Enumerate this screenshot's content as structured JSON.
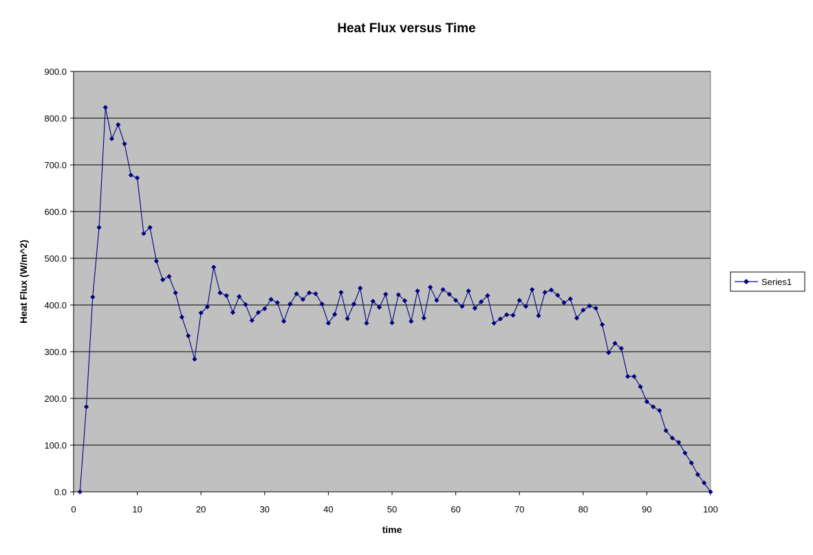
{
  "colors": {
    "plot_background": "#c0c0c0",
    "gridline": "#000000",
    "series": "#000080",
    "page_background": "#ffffff"
  },
  "chart_data": {
    "type": "line",
    "title": "Heat Flux versus Time",
    "xlabel": "time",
    "ylabel": "Heat Flux (W/m^2)",
    "xlim": [
      0,
      100
    ],
    "ylim": [
      0,
      900
    ],
    "x_ticks": [
      "0",
      "10",
      "20",
      "30",
      "40",
      "50",
      "60",
      "70",
      "80",
      "90",
      "100"
    ],
    "y_ticks": [
      "0.0",
      "100.0",
      "200.0",
      "300.0",
      "400.0",
      "500.0",
      "600.0",
      "700.0",
      "800.0",
      "900.0"
    ],
    "grid": "horizontal",
    "legend": "right",
    "marker": "diamond",
    "series": [
      {
        "name": "Series1",
        "x": [
          1,
          2,
          3,
          4,
          5,
          6,
          7,
          8,
          9,
          10,
          11,
          12,
          13,
          14,
          15,
          16,
          17,
          18,
          19,
          20,
          21,
          22,
          23,
          24,
          25,
          26,
          27,
          28,
          29,
          30,
          31,
          32,
          33,
          34,
          35,
          36,
          37,
          38,
          39,
          40,
          41,
          42,
          43,
          44,
          45,
          46,
          47,
          48,
          49,
          50,
          51,
          52,
          53,
          54,
          55,
          56,
          57,
          58,
          59,
          60,
          61,
          62,
          63,
          64,
          65,
          66,
          67,
          68,
          69,
          70,
          71,
          72,
          73,
          74,
          75,
          76,
          77,
          78,
          79,
          80,
          81,
          82,
          83,
          84,
          85,
          86,
          87,
          88,
          89,
          90,
          91,
          92,
          93,
          94,
          95,
          96,
          97,
          98,
          99,
          100
        ],
        "values": [
          0,
          182,
          417,
          566,
          823,
          756,
          786,
          745,
          678,
          672,
          553,
          566,
          494,
          454,
          461,
          426,
          374,
          334,
          284,
          383,
          396,
          481,
          426,
          420,
          384,
          418,
          401,
          367,
          384,
          392,
          412,
          405,
          365,
          402,
          424,
          412,
          426,
          424,
          402,
          361,
          380,
          427,
          371,
          402,
          436,
          361,
          408,
          395,
          423,
          362,
          422,
          409,
          365,
          430,
          372,
          438,
          410,
          433,
          423,
          410,
          397,
          430,
          393,
          407,
          420,
          361,
          370,
          379,
          378,
          410,
          397,
          433,
          377,
          427,
          432,
          421,
          405,
          413,
          372,
          389,
          398,
          393,
          358,
          298,
          318,
          307,
          247,
          247,
          225,
          193,
          182,
          174,
          131,
          115,
          106,
          83,
          62,
          37,
          19,
          0
        ]
      }
    ]
  }
}
